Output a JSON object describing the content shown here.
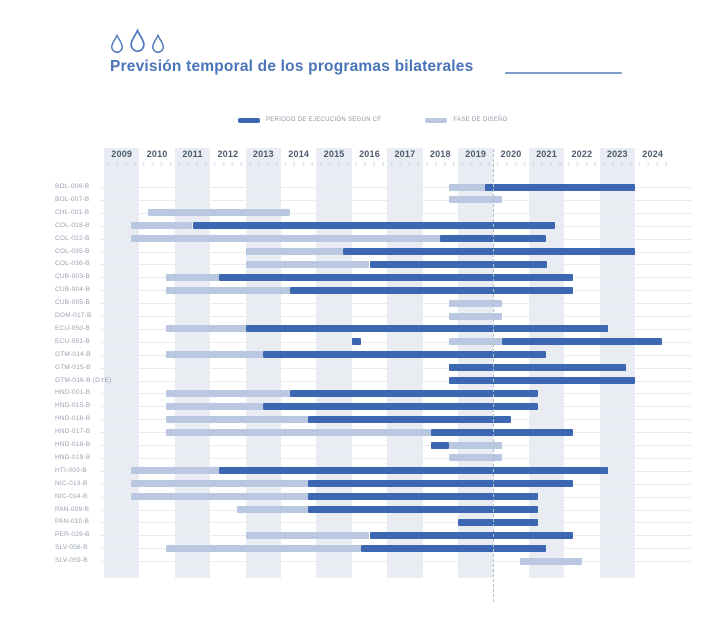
{
  "header": {
    "title": "Previsión temporal de los programas bilaterales",
    "icons": [
      "water-drop-icon",
      "water-drop-icon",
      "water-drop-icon"
    ]
  },
  "colors": {
    "title": "#4a74b8",
    "title_rule": "#7d9cc9",
    "drop_stroke": "#4a76bb",
    "ejecucion": "#3b68b1",
    "diseno": "#b9c8e0",
    "stripe": "#e9edf3",
    "year_label": "#4c5a6e",
    "quarter_label": "#c7ceda",
    "row_label": "#99a3b2",
    "today_line": "#b5bec9"
  },
  "chart_data": {
    "type": "bar",
    "variant": "gantt-timeline",
    "title": "Previsión temporal de los programas bilaterales",
    "legend": [
      {
        "label": "PERIODO DE EJECUCIÓN SEGÚN CF",
        "phase": "ejecucion"
      },
      {
        "label": "FASE DE DISEÑO",
        "phase": "diseno"
      }
    ],
    "x_axis": {
      "start": 2009,
      "end": 2025,
      "years": [
        2009,
        2010,
        2011,
        2012,
        2013,
        2014,
        2015,
        2016,
        2017,
        2018,
        2019,
        2020,
        2021,
        2022,
        2023,
        2024
      ],
      "quarter_labels": [
        "1",
        "2",
        "3",
        "4"
      ],
      "striped_years": "odd"
    },
    "today_line": 2020.0,
    "rows": [
      {
        "label": "BOL-006-B",
        "segments": [
          {
            "phase": "diseno",
            "start": 2018.75,
            "end": 2019.75
          },
          {
            "phase": "ejecucion",
            "start": 2019.75,
            "end": 2024.0
          }
        ]
      },
      {
        "label": "BOL-007-B",
        "segments": [
          {
            "phase": "diseno",
            "start": 2018.75,
            "end": 2020.25
          }
        ]
      },
      {
        "label": "CHL-001-B",
        "segments": [
          {
            "phase": "diseno",
            "start": 2010.25,
            "end": 2014.25
          }
        ]
      },
      {
        "label": "COL-018-B",
        "segments": [
          {
            "phase": "diseno",
            "start": 2009.75,
            "end": 2011.5
          },
          {
            "phase": "ejecucion",
            "start": 2011.5,
            "end": 2021.75
          }
        ]
      },
      {
        "label": "COL-022-B",
        "segments": [
          {
            "phase": "diseno",
            "start": 2009.75,
            "end": 2018.5
          },
          {
            "phase": "ejecucion",
            "start": 2018.5,
            "end": 2021.5
          }
        ]
      },
      {
        "label": "COL-035-B",
        "segments": [
          {
            "phase": "diseno",
            "start": 2013.0,
            "end": 2015.75
          },
          {
            "phase": "ejecucion",
            "start": 2015.75,
            "end": 2024.0
          }
        ]
      },
      {
        "label": "COL-036-B",
        "segments": [
          {
            "phase": "diseno",
            "start": 2013.0,
            "end": 2016.5
          },
          {
            "phase": "ejecucion",
            "start": 2016.5,
            "end": 2021.5
          }
        ]
      },
      {
        "label": "CUB-003-B",
        "segments": [
          {
            "phase": "diseno",
            "start": 2010.75,
            "end": 2012.25
          },
          {
            "phase": "ejecucion",
            "start": 2012.25,
            "end": 2022.25
          }
        ]
      },
      {
        "label": "CUB-004-B",
        "segments": [
          {
            "phase": "diseno",
            "start": 2010.75,
            "end": 2014.25
          },
          {
            "phase": "ejecucion",
            "start": 2014.25,
            "end": 2022.25
          }
        ]
      },
      {
        "label": "CUB-005-B",
        "segments": [
          {
            "phase": "diseno",
            "start": 2018.75,
            "end": 2020.25
          }
        ]
      },
      {
        "label": "DOM-017-B",
        "segments": [
          {
            "phase": "diseno",
            "start": 2018.75,
            "end": 2020.25
          }
        ]
      },
      {
        "label": "ECU-050-B",
        "segments": [
          {
            "phase": "diseno",
            "start": 2010.75,
            "end": 2013.0
          },
          {
            "phase": "ejecucion",
            "start": 2013.0,
            "end": 2023.25
          }
        ]
      },
      {
        "label": "ECU-051-B",
        "segments": [
          {
            "phase": "ejecucion",
            "start": 2016.0,
            "end": 2016.25
          },
          {
            "phase": "diseno",
            "start": 2018.75,
            "end": 2020.25
          },
          {
            "phase": "ejecucion",
            "start": 2020.25,
            "end": 2024.75
          }
        ]
      },
      {
        "label": "GTM-014-B",
        "segments": [
          {
            "phase": "diseno",
            "start": 2010.75,
            "end": 2013.5
          },
          {
            "phase": "ejecucion",
            "start": 2013.5,
            "end": 2021.5
          }
        ]
      },
      {
        "label": "GTM-015-B",
        "segments": [
          {
            "phase": "ejecucion",
            "start": 2018.75,
            "end": 2023.75
          }
        ]
      },
      {
        "label": "GTM-016-B (DYE)",
        "segments": [
          {
            "phase": "ejecucion",
            "start": 2018.75,
            "end": 2024.0
          }
        ]
      },
      {
        "label": "HND-001-B",
        "segments": [
          {
            "phase": "diseno",
            "start": 2010.75,
            "end": 2014.25
          },
          {
            "phase": "ejecucion",
            "start": 2014.25,
            "end": 2021.25
          }
        ]
      },
      {
        "label": "HND-015-B",
        "segments": [
          {
            "phase": "diseno",
            "start": 2010.75,
            "end": 2013.5
          },
          {
            "phase": "ejecucion",
            "start": 2013.5,
            "end": 2021.25
          }
        ]
      },
      {
        "label": "HND-016-B",
        "segments": [
          {
            "phase": "diseno",
            "start": 2010.75,
            "end": 2014.75
          },
          {
            "phase": "ejecucion",
            "start": 2014.75,
            "end": 2020.5
          }
        ]
      },
      {
        "label": "HND-017-B",
        "segments": [
          {
            "phase": "diseno",
            "start": 2010.75,
            "end": 2018.25
          },
          {
            "phase": "ejecucion",
            "start": 2018.25,
            "end": 2022.25
          }
        ]
      },
      {
        "label": "HND-018-B",
        "segments": [
          {
            "phase": "ejecucion",
            "start": 2018.25,
            "end": 2018.75
          },
          {
            "phase": "diseno",
            "start": 2018.75,
            "end": 2020.25
          }
        ]
      },
      {
        "label": "HND-019-B",
        "segments": [
          {
            "phase": "diseno",
            "start": 2018.75,
            "end": 2020.25
          }
        ]
      },
      {
        "label": "HTI-003-B",
        "segments": [
          {
            "phase": "diseno",
            "start": 2009.75,
            "end": 2012.25
          },
          {
            "phase": "ejecucion",
            "start": 2012.25,
            "end": 2023.25
          }
        ]
      },
      {
        "label": "NIC-013-B",
        "segments": [
          {
            "phase": "diseno",
            "start": 2009.75,
            "end": 2014.75
          },
          {
            "phase": "ejecucion",
            "start": 2014.75,
            "end": 2022.25
          }
        ]
      },
      {
        "label": "NIC-014-B",
        "segments": [
          {
            "phase": "diseno",
            "start": 2009.75,
            "end": 2014.75
          },
          {
            "phase": "ejecucion",
            "start": 2014.75,
            "end": 2021.25
          }
        ]
      },
      {
        "label": "PAN-009-B",
        "segments": [
          {
            "phase": "diseno",
            "start": 2012.75,
            "end": 2014.75
          },
          {
            "phase": "ejecucion",
            "start": 2014.75,
            "end": 2021.25
          }
        ]
      },
      {
        "label": "PAN-010-B",
        "segments": [
          {
            "phase": "ejecucion",
            "start": 2019.0,
            "end": 2021.25
          }
        ]
      },
      {
        "label": "PER-029-B",
        "segments": [
          {
            "phase": "diseno",
            "start": 2013.0,
            "end": 2016.5
          },
          {
            "phase": "ejecucion",
            "start": 2016.5,
            "end": 2022.25
          }
        ]
      },
      {
        "label": "SLV-056-B",
        "segments": [
          {
            "phase": "diseno",
            "start": 2010.75,
            "end": 2016.25
          },
          {
            "phase": "ejecucion",
            "start": 2016.25,
            "end": 2021.5
          }
        ]
      },
      {
        "label": "SLV-059-B",
        "segments": [
          {
            "phase": "diseno",
            "start": 2020.75,
            "end": 2022.5
          }
        ]
      }
    ]
  }
}
